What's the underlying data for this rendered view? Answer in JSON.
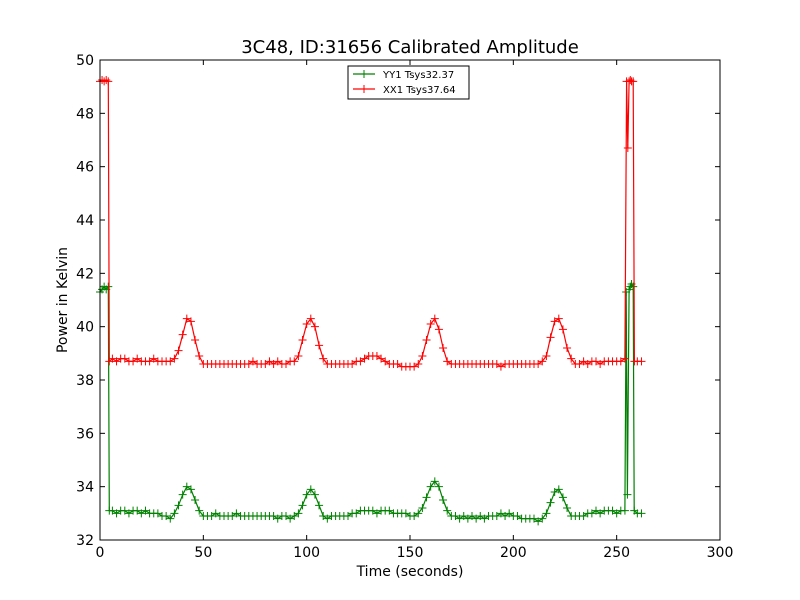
{
  "chart_data": {
    "type": "line",
    "title": "3C48, ID:31656 Calibrated Amplitude",
    "xlabel": "Time (seconds)",
    "ylabel": "Power in Kelvin",
    "xlim": [
      0,
      300
    ],
    "ylim": [
      32,
      50
    ],
    "xticks": [
      "0",
      "50",
      "100",
      "150",
      "200",
      "250",
      "300"
    ],
    "yticks": [
      "32",
      "34",
      "36",
      "38",
      "40",
      "42",
      "44",
      "46",
      "48",
      "50"
    ],
    "grid": false,
    "legend_position": "top-center",
    "series": [
      {
        "name": "YY1 Tsys32.37",
        "color": "#008000",
        "marker": "+",
        "points": [
          [
            0,
            41.3
          ],
          [
            1,
            41.4
          ],
          [
            2,
            41.5
          ],
          [
            3,
            41.4
          ],
          [
            4,
            41.5
          ],
          [
            4.5,
            33.1
          ],
          [
            6,
            33.1
          ],
          [
            8,
            33.0
          ],
          [
            10,
            33.1
          ],
          [
            12,
            33.1
          ],
          [
            14,
            33.0
          ],
          [
            16,
            33.1
          ],
          [
            18,
            33.1
          ],
          [
            20,
            33.0
          ],
          [
            22,
            33.1
          ],
          [
            24,
            33.0
          ],
          [
            26,
            33.0
          ],
          [
            28,
            33.0
          ],
          [
            30,
            32.9
          ],
          [
            32,
            32.9
          ],
          [
            34,
            32.8
          ],
          [
            36,
            33.0
          ],
          [
            38,
            33.3
          ],
          [
            40,
            33.7
          ],
          [
            42,
            34.0
          ],
          [
            44,
            33.9
          ],
          [
            46,
            33.5
          ],
          [
            48,
            33.1
          ],
          [
            50,
            32.9
          ],
          [
            52,
            32.9
          ],
          [
            54,
            32.9
          ],
          [
            56,
            33.0
          ],
          [
            58,
            32.9
          ],
          [
            60,
            32.9
          ],
          [
            62,
            32.9
          ],
          [
            64,
            32.9
          ],
          [
            66,
            33.0
          ],
          [
            68,
            32.9
          ],
          [
            70,
            32.9
          ],
          [
            72,
            32.9
          ],
          [
            74,
            32.9
          ],
          [
            76,
            32.9
          ],
          [
            78,
            32.9
          ],
          [
            80,
            32.9
          ],
          [
            82,
            32.9
          ],
          [
            84,
            32.9
          ],
          [
            86,
            32.8
          ],
          [
            88,
            32.9
          ],
          [
            90,
            32.9
          ],
          [
            92,
            32.8
          ],
          [
            94,
            32.9
          ],
          [
            96,
            33.0
          ],
          [
            98,
            33.3
          ],
          [
            100,
            33.7
          ],
          [
            102,
            33.9
          ],
          [
            104,
            33.7
          ],
          [
            106,
            33.3
          ],
          [
            108,
            32.9
          ],
          [
            110,
            32.8
          ],
          [
            112,
            32.9
          ],
          [
            114,
            32.9
          ],
          [
            116,
            32.9
          ],
          [
            118,
            32.9
          ],
          [
            120,
            32.9
          ],
          [
            122,
            33.0
          ],
          [
            124,
            33.0
          ],
          [
            126,
            33.1
          ],
          [
            128,
            33.1
          ],
          [
            130,
            33.1
          ],
          [
            132,
            33.1
          ],
          [
            134,
            33.0
          ],
          [
            136,
            33.1
          ],
          [
            138,
            33.1
          ],
          [
            140,
            33.1
          ],
          [
            142,
            33.0
          ],
          [
            144,
            33.0
          ],
          [
            146,
            33.0
          ],
          [
            148,
            33.0
          ],
          [
            150,
            32.9
          ],
          [
            152,
            32.9
          ],
          [
            154,
            33.0
          ],
          [
            156,
            33.2
          ],
          [
            158,
            33.6
          ],
          [
            160,
            34.0
          ],
          [
            162,
            34.2
          ],
          [
            164,
            34.0
          ],
          [
            166,
            33.5
          ],
          [
            168,
            33.1
          ],
          [
            170,
            32.9
          ],
          [
            172,
            32.9
          ],
          [
            174,
            32.8
          ],
          [
            176,
            32.9
          ],
          [
            178,
            32.8
          ],
          [
            180,
            32.9
          ],
          [
            182,
            32.8
          ],
          [
            184,
            32.9
          ],
          [
            186,
            32.8
          ],
          [
            188,
            32.9
          ],
          [
            190,
            32.9
          ],
          [
            192,
            32.9
          ],
          [
            194,
            33.0
          ],
          [
            196,
            32.9
          ],
          [
            198,
            33.0
          ],
          [
            200,
            32.9
          ],
          [
            202,
            32.9
          ],
          [
            204,
            32.8
          ],
          [
            206,
            32.8
          ],
          [
            208,
            32.8
          ],
          [
            210,
            32.8
          ],
          [
            212,
            32.7
          ],
          [
            214,
            32.8
          ],
          [
            216,
            33.0
          ],
          [
            218,
            33.4
          ],
          [
            220,
            33.8
          ],
          [
            222,
            33.9
          ],
          [
            224,
            33.6
          ],
          [
            226,
            33.2
          ],
          [
            228,
            32.9
          ],
          [
            230,
            32.9
          ],
          [
            232,
            32.9
          ],
          [
            234,
            32.9
          ],
          [
            236,
            33.0
          ],
          [
            238,
            33.0
          ],
          [
            240,
            33.1
          ],
          [
            242,
            33.0
          ],
          [
            244,
            33.1
          ],
          [
            246,
            33.1
          ],
          [
            248,
            33.1
          ],
          [
            250,
            33.0
          ],
          [
            252,
            33.1
          ],
          [
            254,
            33.1
          ],
          [
            254.6,
            41.3
          ],
          [
            255.2,
            33.7
          ],
          [
            256,
            41.4
          ],
          [
            256.6,
            41.5
          ],
          [
            257.2,
            41.6
          ],
          [
            258,
            41.5
          ],
          [
            258.5,
            33.1
          ],
          [
            260,
            33.0
          ],
          [
            262,
            33.0
          ]
        ]
      },
      {
        "name": "XX1 Tsys37.64",
        "color": "#ff0000",
        "marker": "+",
        "points": [
          [
            0,
            49.2
          ],
          [
            1,
            49.25
          ],
          [
            2,
            49.2
          ],
          [
            3,
            49.25
          ],
          [
            4,
            49.2
          ],
          [
            4.5,
            38.7
          ],
          [
            6,
            38.8
          ],
          [
            8,
            38.7
          ],
          [
            10,
            38.8
          ],
          [
            12,
            38.8
          ],
          [
            14,
            38.7
          ],
          [
            16,
            38.7
          ],
          [
            18,
            38.8
          ],
          [
            20,
            38.7
          ],
          [
            22,
            38.7
          ],
          [
            24,
            38.7
          ],
          [
            26,
            38.8
          ],
          [
            28,
            38.7
          ],
          [
            30,
            38.7
          ],
          [
            32,
            38.7
          ],
          [
            34,
            38.7
          ],
          [
            36,
            38.8
          ],
          [
            38,
            39.1
          ],
          [
            40,
            39.7
          ],
          [
            42,
            40.3
          ],
          [
            44,
            40.2
          ],
          [
            46,
            39.5
          ],
          [
            48,
            38.9
          ],
          [
            50,
            38.6
          ],
          [
            52,
            38.6
          ],
          [
            54,
            38.6
          ],
          [
            56,
            38.6
          ],
          [
            58,
            38.6
          ],
          [
            60,
            38.6
          ],
          [
            62,
            38.6
          ],
          [
            64,
            38.6
          ],
          [
            66,
            38.6
          ],
          [
            68,
            38.6
          ],
          [
            70,
            38.6
          ],
          [
            72,
            38.6
          ],
          [
            74,
            38.7
          ],
          [
            76,
            38.6
          ],
          [
            78,
            38.6
          ],
          [
            80,
            38.6
          ],
          [
            82,
            38.7
          ],
          [
            84,
            38.6
          ],
          [
            86,
            38.7
          ],
          [
            88,
            38.6
          ],
          [
            90,
            38.6
          ],
          [
            92,
            38.7
          ],
          [
            94,
            38.7
          ],
          [
            96,
            38.9
          ],
          [
            98,
            39.5
          ],
          [
            100,
            40.1
          ],
          [
            102,
            40.3
          ],
          [
            104,
            40.0
          ],
          [
            106,
            39.3
          ],
          [
            108,
            38.8
          ],
          [
            110,
            38.6
          ],
          [
            112,
            38.6
          ],
          [
            114,
            38.6
          ],
          [
            116,
            38.6
          ],
          [
            118,
            38.6
          ],
          [
            120,
            38.6
          ],
          [
            122,
            38.6
          ],
          [
            124,
            38.7
          ],
          [
            126,
            38.7
          ],
          [
            128,
            38.8
          ],
          [
            130,
            38.9
          ],
          [
            132,
            38.9
          ],
          [
            134,
            38.9
          ],
          [
            136,
            38.8
          ],
          [
            138,
            38.7
          ],
          [
            140,
            38.6
          ],
          [
            142,
            38.6
          ],
          [
            144,
            38.6
          ],
          [
            146,
            38.5
          ],
          [
            148,
            38.5
          ],
          [
            150,
            38.5
          ],
          [
            152,
            38.5
          ],
          [
            154,
            38.6
          ],
          [
            156,
            38.9
          ],
          [
            158,
            39.5
          ],
          [
            160,
            40.1
          ],
          [
            162,
            40.3
          ],
          [
            164,
            39.9
          ],
          [
            166,
            39.2
          ],
          [
            168,
            38.7
          ],
          [
            170,
            38.6
          ],
          [
            172,
            38.6
          ],
          [
            174,
            38.6
          ],
          [
            176,
            38.6
          ],
          [
            178,
            38.6
          ],
          [
            180,
            38.6
          ],
          [
            182,
            38.6
          ],
          [
            184,
            38.6
          ],
          [
            186,
            38.6
          ],
          [
            188,
            38.6
          ],
          [
            190,
            38.6
          ],
          [
            192,
            38.6
          ],
          [
            194,
            38.5
          ],
          [
            196,
            38.6
          ],
          [
            198,
            38.6
          ],
          [
            200,
            38.6
          ],
          [
            202,
            38.6
          ],
          [
            204,
            38.6
          ],
          [
            206,
            38.6
          ],
          [
            208,
            38.6
          ],
          [
            210,
            38.6
          ],
          [
            212,
            38.6
          ],
          [
            214,
            38.7
          ],
          [
            216,
            38.9
          ],
          [
            218,
            39.6
          ],
          [
            220,
            40.2
          ],
          [
            222,
            40.3
          ],
          [
            224,
            39.9
          ],
          [
            226,
            39.2
          ],
          [
            228,
            38.8
          ],
          [
            230,
            38.6
          ],
          [
            232,
            38.6
          ],
          [
            234,
            38.7
          ],
          [
            236,
            38.6
          ],
          [
            238,
            38.7
          ],
          [
            240,
            38.7
          ],
          [
            242,
            38.6
          ],
          [
            244,
            38.7
          ],
          [
            246,
            38.7
          ],
          [
            248,
            38.7
          ],
          [
            250,
            38.7
          ],
          [
            252,
            38.7
          ],
          [
            254,
            38.8
          ],
          [
            254.8,
            49.2
          ],
          [
            255.4,
            46.7
          ],
          [
            256,
            49.2
          ],
          [
            256.6,
            49.25
          ],
          [
            257.2,
            49.2
          ],
          [
            258,
            49.2
          ],
          [
            258.6,
            38.7
          ],
          [
            260,
            38.7
          ],
          [
            262,
            38.7
          ]
        ]
      }
    ]
  }
}
